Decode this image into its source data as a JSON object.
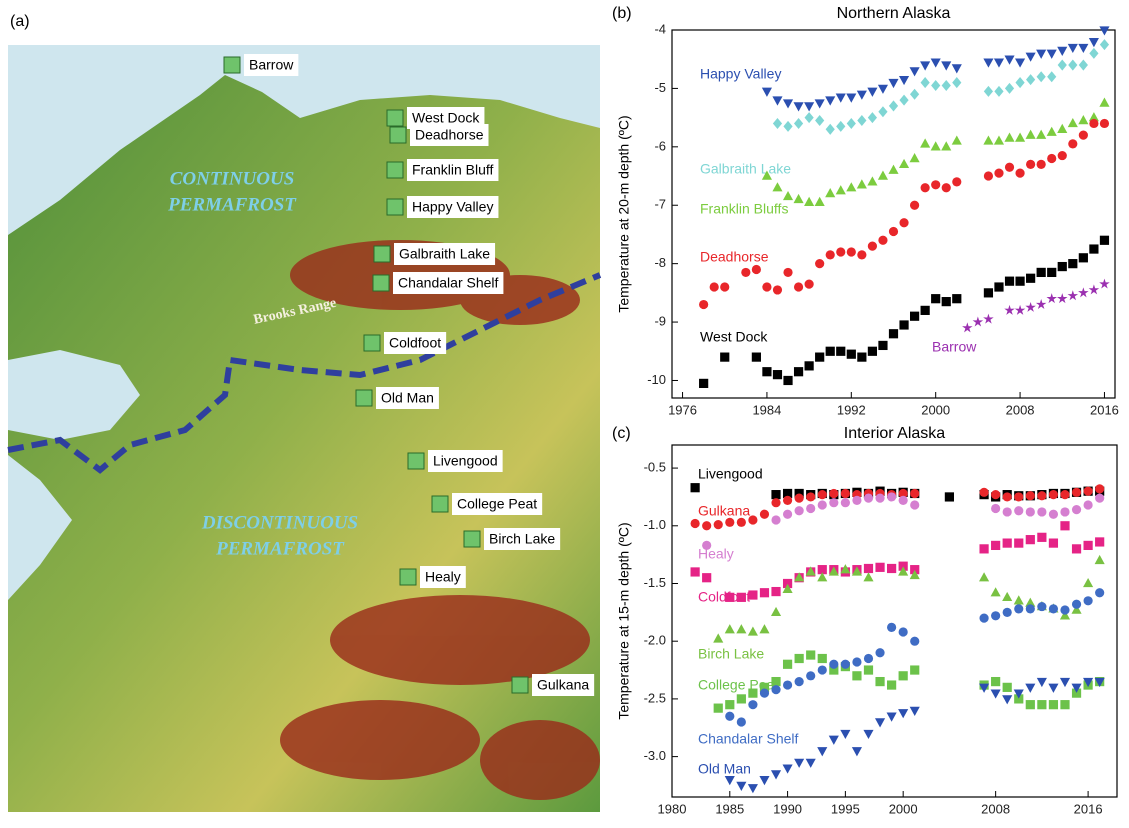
{
  "map": {
    "panel": "(a)",
    "zones": [
      [
        "CONTINUOUS",
        "PERMAFROST"
      ],
      [
        "DISCONTINUOUS",
        "PERMAFROST"
      ]
    ],
    "range": "Brooks Range",
    "sites": [
      "Barrow",
      "West Dock",
      "Deadhorse",
      "Franklin Bluff",
      "Happy Valley",
      "Galbraith Lake",
      "Chandalar Shelf",
      "Coldfoot",
      "Old Man",
      "Livengood",
      "College Peat",
      "Birch Lake",
      "Healy",
      "Gulkana"
    ]
  },
  "chart_data": [
    {
      "type": "scatter",
      "panel": "(b)",
      "title": "Northern Alaska",
      "y_label": "Temperature at 20-m depth (ºC)",
      "xlim": [
        1975,
        2017
      ],
      "xticks": [
        1976,
        1984,
        1992,
        2000,
        2008,
        2016
      ],
      "ylim": [
        -10.3,
        -4
      ],
      "yticks": [
        -4,
        -5,
        -6,
        -7,
        -8,
        -9,
        -10
      ],
      "series": [
        {
          "name": "Happy Valley",
          "color": "#2b4fb0",
          "marker": "triangle-down",
          "x": [
            1984,
            1985,
            1986,
            1987,
            1988,
            1989,
            1990,
            1991,
            1992,
            1993,
            1994,
            1995,
            1996,
            1997,
            1998,
            1999,
            2000,
            2001,
            2002,
            2005,
            2006,
            2007,
            2008,
            2009,
            2010,
            2011,
            2012,
            2013,
            2014,
            2015,
            2016
          ],
          "values": [
            -5.05,
            -5.2,
            -5.25,
            -5.3,
            -5.3,
            -5.25,
            -5.2,
            -5.15,
            -5.15,
            -5.1,
            -5.05,
            -5.0,
            -4.9,
            -4.85,
            -4.7,
            -4.6,
            -4.55,
            -4.6,
            -4.65,
            -4.55,
            -4.55,
            -4.5,
            -4.55,
            -4.45,
            -4.4,
            -4.4,
            -4.35,
            -4.3,
            -4.3,
            -4.2,
            -4.0
          ]
        },
        {
          "name": "Galbraith Lake",
          "color": "#7fd6d4",
          "marker": "diamond",
          "x": [
            1985,
            1986,
            1987,
            1988,
            1989,
            1990,
            1991,
            1992,
            1993,
            1994,
            1995,
            1996,
            1997,
            1998,
            1999,
            2000,
            2001,
            2002,
            2005,
            2006,
            2007,
            2008,
            2009,
            2010,
            2011,
            2012,
            2013,
            2014,
            2015,
            2016
          ],
          "values": [
            -5.6,
            -5.65,
            -5.6,
            -5.5,
            -5.55,
            -5.7,
            -5.65,
            -5.6,
            -5.55,
            -5.5,
            -5.4,
            -5.3,
            -5.2,
            -5.1,
            -4.9,
            -4.95,
            -4.95,
            -4.9,
            -5.05,
            -5.05,
            -5.0,
            -4.9,
            -4.85,
            -4.8,
            -4.8,
            -4.6,
            -4.6,
            -4.6,
            -4.4,
            -4.25
          ]
        },
        {
          "name": "Franklin Bluffs",
          "color": "#7ccc3f",
          "marker": "triangle",
          "x": [
            1984,
            1985,
            1986,
            1987,
            1988,
            1989,
            1990,
            1991,
            1992,
            1993,
            1994,
            1995,
            1996,
            1997,
            1998,
            1999,
            2000,
            2001,
            2002,
            2005,
            2006,
            2007,
            2008,
            2009,
            2010,
            2011,
            2012,
            2013,
            2014,
            2015,
            2016
          ],
          "values": [
            -6.5,
            -6.7,
            -6.85,
            -6.9,
            -6.95,
            -6.95,
            -6.8,
            -6.75,
            -6.7,
            -6.65,
            -6.6,
            -6.5,
            -6.4,
            -6.3,
            -6.2,
            -5.95,
            -6.0,
            -6.0,
            -5.9,
            -5.9,
            -5.9,
            -5.85,
            -5.85,
            -5.8,
            -5.8,
            -5.75,
            -5.7,
            -5.6,
            -5.55,
            -5.5,
            -5.25
          ]
        },
        {
          "name": "Deadhorse",
          "color": "#e8262a",
          "marker": "circle",
          "x": [
            1978,
            1979,
            1980,
            1982,
            1983,
            1984,
            1985,
            1986,
            1987,
            1988,
            1989,
            1990,
            1991,
            1992,
            1993,
            1994,
            1995,
            1996,
            1997,
            1998,
            1999,
            2000,
            2001,
            2002,
            2005,
            2006,
            2007,
            2008,
            2009,
            2010,
            2011,
            2012,
            2013,
            2014,
            2015,
            2016
          ],
          "values": [
            -8.7,
            -8.4,
            -8.4,
            -8.15,
            -8.1,
            -8.4,
            -8.45,
            -8.15,
            -8.4,
            -8.35,
            -8.0,
            -7.85,
            -7.8,
            -7.8,
            -7.85,
            -7.7,
            -7.6,
            -7.45,
            -7.3,
            -7.0,
            -6.7,
            -6.65,
            -6.7,
            -6.6,
            -6.5,
            -6.45,
            -6.35,
            -6.45,
            -6.3,
            -6.3,
            -6.2,
            -6.15,
            -5.95,
            -5.8,
            -5.6,
            -5.6
          ]
        },
        {
          "name": "West Dock",
          "color": "#000000",
          "marker": "square",
          "x": [
            1978,
            1980,
            1983,
            1984,
            1985,
            1986,
            1987,
            1988,
            1989,
            1990,
            1991,
            1992,
            1993,
            1994,
            1995,
            1996,
            1997,
            1998,
            1999,
            2000,
            2001,
            2002,
            2005,
            2006,
            2007,
            2008,
            2009,
            2010,
            2011,
            2012,
            2013,
            2014,
            2015,
            2016
          ],
          "values": [
            -10.05,
            -9.6,
            -9.6,
            -9.85,
            -9.9,
            -10.0,
            -9.85,
            -9.75,
            -9.6,
            -9.5,
            -9.5,
            -9.55,
            -9.6,
            -9.5,
            -9.4,
            -9.2,
            -9.05,
            -8.9,
            -8.8,
            -8.6,
            -8.65,
            -8.6,
            -8.5,
            -8.4,
            -8.3,
            -8.3,
            -8.25,
            -8.15,
            -8.15,
            -8.05,
            -8.0,
            -7.9,
            -7.75,
            -7.6
          ]
        },
        {
          "name": "Barrow",
          "color": "#9b30b0",
          "marker": "star",
          "x": [
            2003,
            2004,
            2005,
            2007,
            2008,
            2009,
            2010,
            2011,
            2012,
            2013,
            2014,
            2015,
            2016
          ],
          "values": [
            -9.1,
            -9.0,
            -8.95,
            -8.8,
            -8.8,
            -8.75,
            -8.7,
            -8.6,
            -8.6,
            -8.55,
            -8.5,
            -8.45,
            -8.35
          ]
        }
      ]
    },
    {
      "type": "scatter",
      "panel": "(c)",
      "title": "Interior Alaska",
      "y_label": "Temperature at 15-m depth (ºC)",
      "xlim": [
        1980,
        2018.5
      ],
      "xticks": [
        1980,
        1985,
        1990,
        1995,
        2000,
        2008,
        2016
      ],
      "ylim": [
        -3.35,
        -0.3
      ],
      "yticks": [
        -0.5,
        {
          "value": -1,
          "label": "-1.0"
        },
        -1.5,
        {
          "value": -2,
          "label": "-2.0"
        },
        -2.5,
        {
          "value": -3,
          "label": "-3.0"
        }
      ],
      "series": [
        {
          "name": "Livengood",
          "color": "#000000",
          "marker": "square",
          "x": [
            1982,
            1989,
            1990,
            1991,
            1992,
            1993,
            1994,
            1995,
            1996,
            1997,
            1998,
            1999,
            2000,
            2001,
            2004,
            2007,
            2008,
            2009,
            2010,
            2011,
            2012,
            2013,
            2014,
            2015,
            2016,
            2017
          ],
          "values": [
            -0.67,
            -0.73,
            -0.72,
            -0.72,
            -0.73,
            -0.72,
            -0.73,
            -0.72,
            -0.71,
            -0.72,
            -0.7,
            -0.72,
            -0.71,
            -0.72,
            -0.75,
            -0.73,
            -0.75,
            -0.73,
            -0.74,
            -0.74,
            -0.73,
            -0.72,
            -0.72,
            -0.71,
            -0.7,
            -0.7
          ]
        },
        {
          "name": "Gulkana",
          "color": "#e8262a",
          "marker": "circle",
          "x": [
            1982,
            1983,
            1984,
            1985,
            1986,
            1987,
            1988,
            1989,
            1990,
            1991,
            1992,
            1993,
            1994,
            1995,
            1996,
            1997,
            1998,
            1999,
            2000,
            2001,
            2007,
            2008,
            2009,
            2010,
            2011,
            2012,
            2013,
            2014,
            2015,
            2016,
            2017
          ],
          "values": [
            -0.98,
            -1.0,
            -0.99,
            -0.97,
            -0.97,
            -0.95,
            -0.9,
            -0.8,
            -0.78,
            -0.76,
            -0.75,
            -0.73,
            -0.72,
            -0.72,
            -0.73,
            -0.72,
            -0.72,
            -0.73,
            -0.72,
            -0.72,
            -0.71,
            -0.73,
            -0.75,
            -0.75,
            -0.74,
            -0.74,
            -0.73,
            -0.73,
            -0.71,
            -0.7,
            -0.68
          ]
        },
        {
          "name": "Healy",
          "color": "#d57fd0",
          "marker": "circle",
          "x": [
            1983,
            1989,
            1990,
            1991,
            1992,
            1993,
            1994,
            1995,
            1996,
            1997,
            1998,
            1999,
            2000,
            2001,
            2008,
            2009,
            2010,
            2011,
            2012,
            2013,
            2014,
            2015,
            2016,
            2017
          ],
          "values": [
            -1.17,
            -0.95,
            -0.9,
            -0.87,
            -0.85,
            -0.82,
            -0.8,
            -0.8,
            -0.78,
            -0.76,
            -0.76,
            -0.75,
            -0.78,
            -0.82,
            -0.85,
            -0.88,
            -0.87,
            -0.88,
            -0.88,
            -0.9,
            -0.88,
            -0.86,
            -0.82,
            -0.76
          ]
        },
        {
          "name": "Coldfoot",
          "color": "#e52386",
          "marker": "square",
          "x": [
            1982,
            1983,
            1985,
            1986,
            1987,
            1988,
            1989,
            1990,
            1991,
            1992,
            1993,
            1994,
            1995,
            1996,
            1997,
            1998,
            1999,
            2000,
            2001,
            2007,
            2008,
            2009,
            2010,
            2011,
            2012,
            2013,
            2014,
            2015,
            2016,
            2017
          ],
          "values": [
            -1.4,
            -1.45,
            -1.62,
            -1.62,
            -1.6,
            -1.58,
            -1.57,
            -1.5,
            -1.45,
            -1.4,
            -1.38,
            -1.38,
            -1.4,
            -1.38,
            -1.37,
            -1.36,
            -1.37,
            -1.35,
            -1.38,
            -1.2,
            -1.17,
            -1.15,
            -1.15,
            -1.12,
            -1.1,
            -1.15,
            -1.0,
            -1.2,
            -1.17,
            -1.14
          ]
        },
        {
          "name": "Birch Lake",
          "color": "#79c142",
          "marker": "triangle",
          "x": [
            1984,
            1985,
            1986,
            1987,
            1988,
            1989,
            1990,
            1991,
            1992,
            1993,
            1994,
            1995,
            1996,
            1997,
            2000,
            2001,
            2007,
            2008,
            2009,
            2010,
            2011,
            2012,
            2013,
            2014,
            2015,
            2016,
            2017
          ],
          "values": [
            -1.98,
            -1.9,
            -1.9,
            -1.92,
            -1.9,
            -1.75,
            -1.55,
            -1.45,
            -1.4,
            -1.45,
            -1.4,
            -1.38,
            -1.4,
            -1.45,
            -1.4,
            -1.43,
            -1.45,
            -1.58,
            -1.62,
            -1.65,
            -1.67,
            -1.7,
            -1.72,
            -1.78,
            -1.73,
            -1.5,
            -1.3
          ]
        },
        {
          "name": "College Peat",
          "color": "#6cc24a",
          "marker": "square",
          "x": [
            1984,
            1985,
            1986,
            1987,
            1988,
            1989,
            1990,
            1991,
            1992,
            1993,
            1994,
            1995,
            1996,
            1997,
            1998,
            1999,
            2000,
            2001,
            2007,
            2008,
            2009,
            2010,
            2011,
            2012,
            2013,
            2014,
            2015,
            2016,
            2017
          ],
          "values": [
            -2.58,
            -2.55,
            -2.5,
            -2.45,
            -2.4,
            -2.35,
            -2.2,
            -2.15,
            -2.12,
            -2.15,
            -2.25,
            -2.22,
            -2.3,
            -2.25,
            -2.35,
            -2.38,
            -2.3,
            -2.25,
            -2.38,
            -2.35,
            -2.4,
            -2.5,
            -2.55,
            -2.55,
            -2.55,
            -2.55,
            -2.45,
            -2.38,
            -2.35
          ]
        },
        {
          "name": "Chandalar Shelf",
          "color": "#3f6cc4",
          "marker": "circle",
          "x": [
            1985,
            1986,
            1987,
            1988,
            1989,
            1990,
            1991,
            1992,
            1993,
            1994,
            1995,
            1996,
            1997,
            1998,
            1999,
            2000,
            2001,
            2007,
            2008,
            2009,
            2010,
            2011,
            2012,
            2013,
            2014,
            2015,
            2016,
            2017
          ],
          "values": [
            -2.65,
            -2.7,
            -2.55,
            -2.45,
            -2.42,
            -2.38,
            -2.35,
            -2.3,
            -2.25,
            -2.2,
            -2.2,
            -2.18,
            -2.15,
            -2.1,
            -1.88,
            -1.92,
            -2.0,
            -1.8,
            -1.78,
            -1.75,
            -1.72,
            -1.72,
            -1.7,
            -1.72,
            -1.73,
            -1.68,
            -1.65,
            -1.58
          ]
        },
        {
          "name": "Old Man",
          "color": "#2b4fb0",
          "marker": "triangle-down",
          "x": [
            1985,
            1986,
            1987,
            1988,
            1989,
            1990,
            1991,
            1992,
            1993,
            1994,
            1995,
            1996,
            1997,
            1998,
            1999,
            2000,
            2001,
            2007,
            2008,
            2009,
            2010,
            2011,
            2012,
            2013,
            2014,
            2015,
            2016,
            2017
          ],
          "values": [
            -3.2,
            -3.25,
            -3.27,
            -3.2,
            -3.15,
            -3.1,
            -3.05,
            -3.05,
            -2.95,
            -2.85,
            -2.8,
            -2.95,
            -2.8,
            -2.7,
            -2.65,
            -2.62,
            -2.6,
            -2.4,
            -2.45,
            -2.5,
            -2.45,
            -2.4,
            -2.35,
            -2.4,
            -2.35,
            -2.4,
            -2.35,
            -2.35
          ]
        }
      ]
    }
  ]
}
